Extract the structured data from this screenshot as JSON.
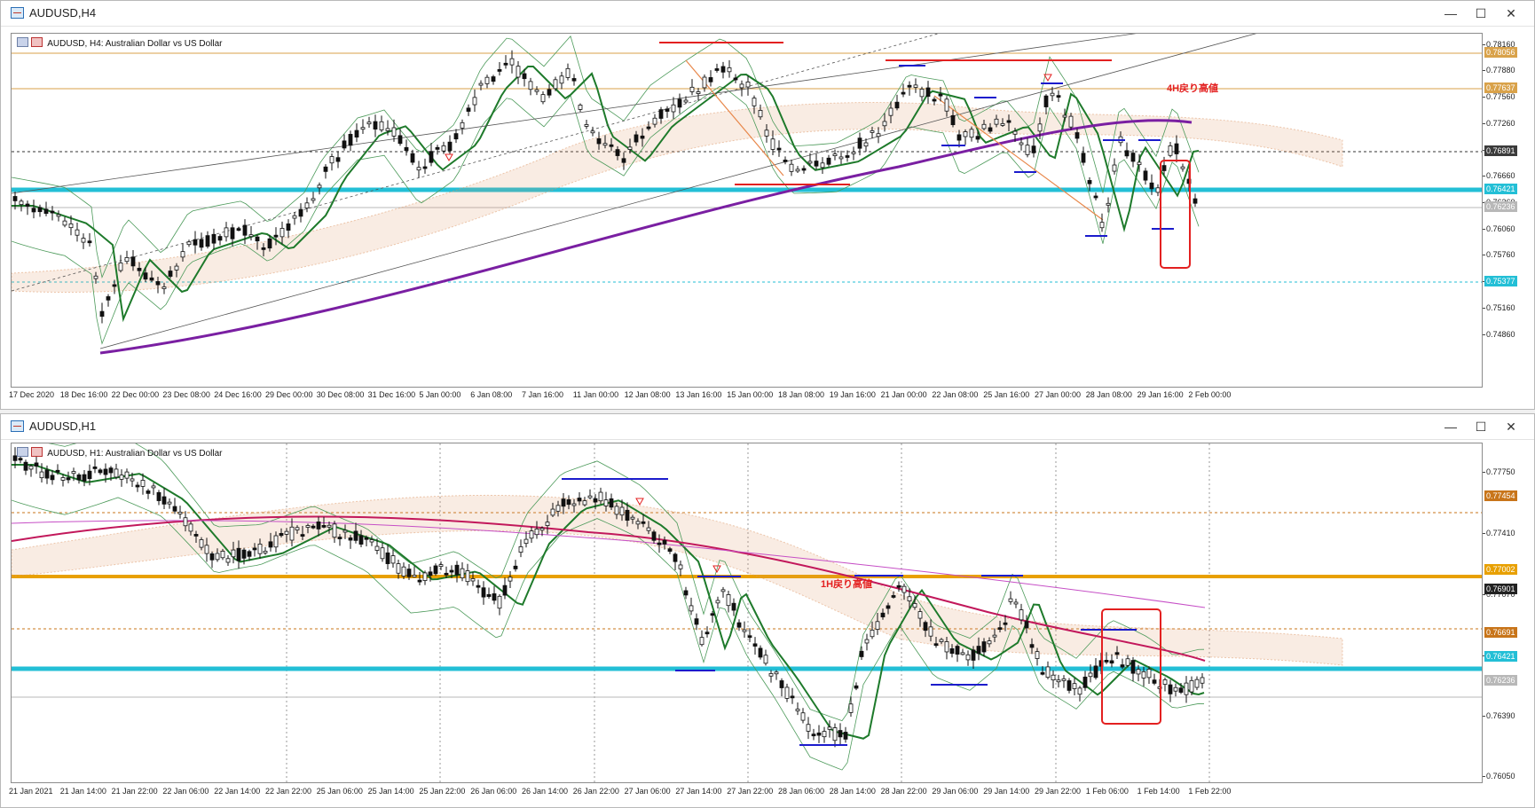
{
  "window_h4": {
    "title": "AUDUSD,H4",
    "symbol_line": "AUDUSD, H4:  Australian Dollar vs US Dollar",
    "annotation": "4H戻り高値",
    "buttons": {
      "minimize": "—",
      "maximize": "☐",
      "close": "✕"
    },
    "price_ticks": [
      "0.78160",
      "0.77880",
      "0.77560",
      "0.77260",
      "0.76950",
      "0.76660",
      "0.76360",
      "0.76060",
      "0.75760",
      "0.75460",
      "0.75160",
      "0.74860"
    ],
    "price_tags": [
      {
        "text": "0.78056",
        "color": "#d9a24a"
      },
      {
        "text": "0.77637",
        "color": "#d9a24a"
      },
      {
        "text": "0.76891",
        "color": "#3b3b3b"
      },
      {
        "text": "0.76421",
        "color": "#23bfd6"
      },
      {
        "text": "0.76236",
        "color": "#b8b8b8"
      },
      {
        "text": "0.75377",
        "color": "#23bfd6"
      }
    ],
    "time_labels": [
      "17 Dec 2020",
      "18 Dec 16:00",
      "22 Dec 00:00",
      "23 Dec 08:00",
      "24 Dec 16:00",
      "29 Dec 00:00",
      "30 Dec 08:00",
      "31 Dec 16:00",
      "5 Jan 00:00",
      "6 Jan 08:00",
      "7 Jan 16:00",
      "11 Jan 00:00",
      "12 Jan 08:00",
      "13 Jan 16:00",
      "15 Jan 00:00",
      "18 Jan 08:00",
      "19 Jan 16:00",
      "21 Jan 00:00",
      "22 Jan 08:00",
      "25 Jan 16:00",
      "27 Jan 00:00",
      "28 Jan 08:00",
      "29 Jan 16:00",
      "2 Feb 00:00"
    ]
  },
  "window_h1": {
    "title": "AUDUSD,H1",
    "symbol_line": "AUDUSD, H1:  Australian Dollar vs US Dollar",
    "annotation": "1H戻り高値",
    "buttons": {
      "minimize": "—",
      "maximize": "☐",
      "close": "✕"
    },
    "price_ticks": [
      "0.77750",
      "0.77410",
      "0.77070",
      "0.76730",
      "0.76390",
      "0.76050"
    ],
    "price_tags": [
      {
        "text": "0.77454",
        "color": "#c8751a"
      },
      {
        "text": "0.77002",
        "color": "#e8a000"
      },
      {
        "text": "0.76901",
        "color": "#222222"
      },
      {
        "text": "0.76691",
        "color": "#c8751a"
      },
      {
        "text": "0.76421",
        "color": "#23bfd6"
      },
      {
        "text": "0.76236",
        "color": "#b8b8b8"
      }
    ],
    "time_labels": [
      "21 Jan 2021",
      "21 Jan 14:00",
      "21 Jan 22:00",
      "22 Jan 06:00",
      "22 Jan 14:00",
      "22 Jan 22:00",
      "25 Jan 06:00",
      "25 Jan 14:00",
      "25 Jan 22:00",
      "26 Jan 06:00",
      "26 Jan 14:00",
      "26 Jan 22:00",
      "27 Jan 06:00",
      "27 Jan 14:00",
      "27 Jan 22:00",
      "28 Jan 06:00",
      "28 Jan 14:00",
      "28 Jan 22:00",
      "29 Jan 06:00",
      "29 Jan 14:00",
      "29 Jan 22:00",
      "1 Feb 06:00",
      "1 Feb 14:00",
      "1 Feb 22:00"
    ]
  },
  "colors": {
    "bull": "#ffffff",
    "bear": "#111111",
    "ma_green": "#1e7a2b",
    "ma_purple": "#7a1fa2",
    "ma_red": "#c2185b",
    "ma_pink": "#c64fc6",
    "band": "#4c9a5a",
    "cyan": "#23bfd6",
    "orange_line": "#e8a000",
    "red_line": "#e32020",
    "blue_line": "#1b1bcc"
  }
}
